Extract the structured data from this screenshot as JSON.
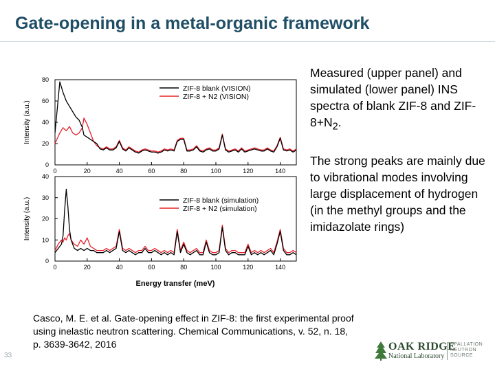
{
  "slide": {
    "title": "Gate-opening in a metal-organic framework",
    "description_p1": "Measured (upper panel) and simulated (lower panel) INS spectra of blank ZIF-8 and ZIF-8+N",
    "description_p1_sub": "2",
    "description_p1_end": ".",
    "description_p2": "The strong peaks are mainly due to vibrational modes involving large displacement of hydrogen (in the methyl groups and the imidazolate rings)",
    "citation": "Casco, M. E. et al. Gate-opening effect in ZIF-8: the first experimental proof using inelastic neutron scattering. Chemical Communications, v. 52, n. 18, p. 3639-3642, 2016",
    "slide_number": "33",
    "logo_line1": "OAK RIDGE",
    "logo_line2": "National Laboratory",
    "logo_sns1": "SPALLATION",
    "logo_sns2": "NEUTRON",
    "logo_sns3": "SOURCE"
  },
  "colors": {
    "title": "#1f4e66",
    "blank": "#000000",
    "n2": "#e8202a"
  },
  "chart_data": [
    {
      "type": "line",
      "ylabel": "Intensity (a.u.)",
      "xlabel": "",
      "xlim": [
        0,
        150
      ],
      "ylim": [
        0,
        80
      ],
      "xticks": [
        "0",
        "20",
        "40",
        "60",
        "80",
        "100",
        "120",
        "140"
      ],
      "yticks": [
        "0",
        "20",
        "40",
        "60",
        "80"
      ],
      "legend_position": "top-right",
      "series": [
        {
          "name": "ZIF-8 blank (VISION)",
          "color": "#000000",
          "x": [
            0,
            3,
            5,
            7,
            9,
            11,
            13,
            15,
            17,
            18,
            20,
            22,
            24,
            26,
            28,
            30,
            32,
            34,
            36,
            38,
            40,
            42,
            44,
            46,
            48,
            50,
            52,
            54,
            56,
            58,
            60,
            62,
            64,
            66,
            68,
            70,
            72,
            74,
            76,
            78,
            80,
            82,
            84,
            86,
            88,
            90,
            92,
            94,
            96,
            98,
            100,
            102,
            104,
            106,
            108,
            110,
            112,
            114,
            116,
            118,
            120,
            122,
            124,
            126,
            128,
            130,
            132,
            134,
            136,
            138,
            140,
            142,
            144,
            146,
            148,
            150
          ],
          "y": [
            30,
            78,
            68,
            60,
            55,
            50,
            45,
            42,
            35,
            28,
            26,
            24,
            22,
            20,
            15,
            14,
            16,
            14,
            14,
            16,
            22,
            15,
            13,
            16,
            14,
            12,
            11,
            13,
            14,
            13,
            12,
            12,
            11,
            12,
            14,
            13,
            14,
            13,
            22,
            24,
            24,
            13,
            13,
            14,
            17,
            13,
            12,
            14,
            15,
            13,
            13,
            15,
            28,
            14,
            12,
            13,
            14,
            12,
            15,
            12,
            13,
            14,
            15,
            14,
            13,
            13,
            15,
            13,
            12,
            17,
            25,
            14,
            13,
            14,
            12,
            14
          ]
        },
        {
          "name": "ZIF-8 + N2 (VISION)",
          "color": "#e8202a",
          "x": [
            0,
            3,
            5,
            7,
            9,
            11,
            13,
            15,
            17,
            18,
            20,
            22,
            24,
            26,
            28,
            30,
            32,
            34,
            36,
            38,
            40,
            42,
            44,
            46,
            48,
            50,
            52,
            54,
            56,
            58,
            60,
            62,
            64,
            66,
            68,
            70,
            72,
            74,
            76,
            78,
            80,
            82,
            84,
            86,
            88,
            90,
            92,
            94,
            96,
            98,
            100,
            102,
            104,
            106,
            108,
            110,
            112,
            114,
            116,
            118,
            120,
            122,
            124,
            126,
            128,
            130,
            132,
            134,
            136,
            138,
            140,
            142,
            144,
            146,
            148,
            150
          ],
          "y": [
            20,
            30,
            35,
            32,
            36,
            30,
            28,
            30,
            35,
            44,
            38,
            30,
            22,
            18,
            16,
            15,
            17,
            15,
            15,
            17,
            23,
            16,
            14,
            17,
            15,
            13,
            12,
            14,
            15,
            14,
            13,
            13,
            12,
            13,
            15,
            14,
            15,
            14,
            23,
            25,
            25,
            14,
            14,
            15,
            18,
            14,
            13,
            15,
            16,
            14,
            14,
            16,
            29,
            15,
            13,
            14,
            15,
            13,
            16,
            13,
            14,
            15,
            16,
            15,
            14,
            14,
            16,
            14,
            13,
            18,
            26,
            15,
            14,
            15,
            13,
            15
          ]
        }
      ]
    },
    {
      "type": "line",
      "ylabel": "Intensity (a.u.)",
      "xlabel": "Energy transfer (meV)",
      "xlim": [
        0,
        150
      ],
      "ylim": [
        0,
        40
      ],
      "xticks": [
        "0",
        "20",
        "40",
        "60",
        "80",
        "100",
        "120",
        "140"
      ],
      "yticks": [
        "0",
        "10",
        "20",
        "30",
        "40"
      ],
      "legend_position": "center-right",
      "series": [
        {
          "name": "ZIF-8 blank (simulation)",
          "color": "#000000",
          "x": [
            0,
            2,
            4,
            5,
            6,
            7,
            8,
            9,
            10,
            11,
            12,
            14,
            16,
            18,
            20,
            22,
            24,
            26,
            28,
            30,
            32,
            34,
            36,
            38,
            40,
            42,
            44,
            46,
            48,
            50,
            52,
            54,
            56,
            58,
            60,
            62,
            64,
            66,
            68,
            70,
            72,
            74,
            76,
            78,
            80,
            82,
            84,
            86,
            88,
            90,
            92,
            94,
            96,
            98,
            100,
            102,
            104,
            106,
            108,
            110,
            112,
            114,
            116,
            118,
            120,
            122,
            124,
            126,
            128,
            130,
            132,
            134,
            136,
            138,
            140,
            142,
            144,
            146,
            148,
            150
          ],
          "y": [
            4,
            6,
            8,
            12,
            24,
            34,
            26,
            15,
            10,
            8,
            6,
            5,
            6,
            5,
            6,
            5,
            5,
            4,
            4,
            4,
            5,
            4,
            5,
            6,
            14,
            5,
            4,
            5,
            4,
            3,
            4,
            4,
            6,
            4,
            4,
            5,
            4,
            3,
            4,
            3,
            4,
            3,
            14,
            4,
            8,
            4,
            3,
            4,
            5,
            3,
            3,
            9,
            4,
            3,
            3,
            4,
            16,
            5,
            3,
            4,
            4,
            3,
            3,
            3,
            7,
            3,
            4,
            3,
            4,
            3,
            4,
            5,
            3,
            8,
            14,
            5,
            3,
            3,
            4,
            3
          ]
        },
        {
          "name": "ZIF-8 + N2 (simulation)",
          "color": "#e8202a",
          "x": [
            0,
            2,
            4,
            5,
            6,
            7,
            8,
            9,
            10,
            11,
            12,
            14,
            16,
            18,
            20,
            22,
            24,
            26,
            28,
            30,
            32,
            34,
            36,
            38,
            40,
            42,
            44,
            46,
            48,
            50,
            52,
            54,
            56,
            58,
            60,
            62,
            64,
            66,
            68,
            70,
            72,
            74,
            76,
            78,
            80,
            82,
            84,
            86,
            88,
            90,
            92,
            94,
            96,
            98,
            100,
            102,
            104,
            106,
            108,
            110,
            112,
            114,
            116,
            118,
            120,
            122,
            124,
            126,
            128,
            130,
            132,
            134,
            136,
            138,
            140,
            142,
            144,
            146,
            148,
            150
          ],
          "y": [
            5,
            8,
            10,
            9,
            11,
            10,
            12,
            13,
            10,
            9,
            8,
            7,
            10,
            8,
            11,
            7,
            6,
            5,
            5,
            5,
            6,
            5,
            6,
            7,
            15,
            6,
            5,
            6,
            5,
            4,
            5,
            5,
            7,
            5,
            5,
            6,
            5,
            4,
            5,
            4,
            5,
            4,
            15,
            5,
            9,
            5,
            4,
            5,
            6,
            4,
            4,
            10,
            5,
            4,
            4,
            5,
            17,
            6,
            4,
            5,
            5,
            4,
            4,
            4,
            8,
            4,
            5,
            4,
            5,
            4,
            5,
            6,
            4,
            9,
            15,
            6,
            4,
            4,
            5,
            4
          ]
        }
      ]
    }
  ]
}
